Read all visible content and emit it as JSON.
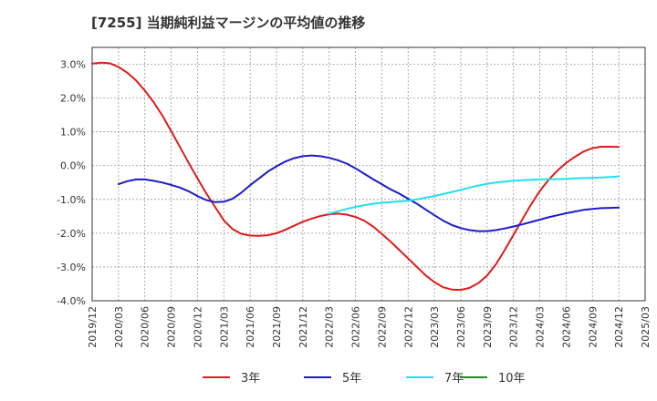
{
  "chart_data": {
    "type": "line",
    "title": "[7255]  当期純利益マージンの平均値の推移",
    "xlabel": "",
    "ylabel": "",
    "ylim": [
      -4.0,
      3.5
    ],
    "y_ticks": [
      3.0,
      2.0,
      1.0,
      0.0,
      -1.0,
      -2.0,
      -3.0,
      -4.0
    ],
    "y_tick_labels": [
      "3.0%",
      "2.0%",
      "1.0%",
      "0.0%",
      "-1.0%",
      "-2.0%",
      "-3.0%",
      "-4.0%"
    ],
    "x_tick_labels": [
      "2019/12",
      "2020/03",
      "2020/06",
      "2020/09",
      "2020/12",
      "2021/03",
      "2021/06",
      "2021/09",
      "2021/12",
      "2022/03",
      "2022/06",
      "2022/09",
      "2022/12",
      "2023/03",
      "2023/06",
      "2023/09",
      "2023/12",
      "2024/03",
      "2024/06",
      "2024/09",
      "2024/12",
      "2025/03"
    ],
    "grid": true,
    "legend_position": "bottom",
    "series": [
      {
        "name": "3年",
        "color": "#dd1c1c",
        "points": [
          {
            "x": "2019/12",
            "y": 3.02
          },
          {
            "x": "2020/01",
            "y": 3.05
          },
          {
            "x": "2020/02",
            "y": 3.03
          },
          {
            "x": "2020/03",
            "y": 2.92
          },
          {
            "x": "2020/04",
            "y": 2.75
          },
          {
            "x": "2020/05",
            "y": 2.52
          },
          {
            "x": "2020/06",
            "y": 2.22
          },
          {
            "x": "2020/07",
            "y": 1.88
          },
          {
            "x": "2020/08",
            "y": 1.48
          },
          {
            "x": "2020/09",
            "y": 1.02
          },
          {
            "x": "2020/10",
            "y": 0.55
          },
          {
            "x": "2020/11",
            "y": 0.08
          },
          {
            "x": "2020/12",
            "y": -0.38
          },
          {
            "x": "2021/01",
            "y": -0.82
          },
          {
            "x": "2021/02",
            "y": -1.22
          },
          {
            "x": "2021/03",
            "y": -1.62
          },
          {
            "x": "2021/04",
            "y": -1.88
          },
          {
            "x": "2021/05",
            "y": -2.02
          },
          {
            "x": "2021/06",
            "y": -2.07
          },
          {
            "x": "2021/07",
            "y": -2.08
          },
          {
            "x": "2021/08",
            "y": -2.06
          },
          {
            "x": "2021/09",
            "y": -2.0
          },
          {
            "x": "2021/10",
            "y": -1.9
          },
          {
            "x": "2021/11",
            "y": -1.78
          },
          {
            "x": "2021/12",
            "y": -1.66
          },
          {
            "x": "2022/01",
            "y": -1.57
          },
          {
            "x": "2022/02",
            "y": -1.49
          },
          {
            "x": "2022/03",
            "y": -1.44
          },
          {
            "x": "2022/04",
            "y": -1.42
          },
          {
            "x": "2022/05",
            "y": -1.45
          },
          {
            "x": "2022/06",
            "y": -1.52
          },
          {
            "x": "2022/07",
            "y": -1.63
          },
          {
            "x": "2022/08",
            "y": -1.8
          },
          {
            "x": "2022/09",
            "y": -2.02
          },
          {
            "x": "2022/10",
            "y": -2.25
          },
          {
            "x": "2022/11",
            "y": -2.5
          },
          {
            "x": "2022/12",
            "y": -2.75
          },
          {
            "x": "2023/01",
            "y": -3.0
          },
          {
            "x": "2023/02",
            "y": -3.25
          },
          {
            "x": "2023/03",
            "y": -3.45
          },
          {
            "x": "2023/04",
            "y": -3.6
          },
          {
            "x": "2023/05",
            "y": -3.67
          },
          {
            "x": "2023/06",
            "y": -3.68
          },
          {
            "x": "2023/07",
            "y": -3.62
          },
          {
            "x": "2023/08",
            "y": -3.48
          },
          {
            "x": "2023/09",
            "y": -3.25
          },
          {
            "x": "2023/10",
            "y": -2.92
          },
          {
            "x": "2023/11",
            "y": -2.5
          },
          {
            "x": "2023/12",
            "y": -2.05
          },
          {
            "x": "2024/01",
            "y": -1.6
          },
          {
            "x": "2024/02",
            "y": -1.15
          },
          {
            "x": "2024/03",
            "y": -0.75
          },
          {
            "x": "2024/04",
            "y": -0.42
          },
          {
            "x": "2024/05",
            "y": -0.15
          },
          {
            "x": "2024/06",
            "y": 0.08
          },
          {
            "x": "2024/07",
            "y": 0.26
          },
          {
            "x": "2024/08",
            "y": 0.42
          },
          {
            "x": "2024/09",
            "y": 0.52
          },
          {
            "x": "2024/10",
            "y": 0.56
          },
          {
            "x": "2024/11",
            "y": 0.56
          },
          {
            "x": "2024/12",
            "y": 0.55
          }
        ]
      },
      {
        "name": "5年",
        "color": "#1c1cc8",
        "points": [
          {
            "x": "2020/03",
            "y": -0.55
          },
          {
            "x": "2020/04",
            "y": -0.46
          },
          {
            "x": "2020/05",
            "y": -0.41
          },
          {
            "x": "2020/06",
            "y": -0.41
          },
          {
            "x": "2020/07",
            "y": -0.45
          },
          {
            "x": "2020/08",
            "y": -0.5
          },
          {
            "x": "2020/09",
            "y": -0.57
          },
          {
            "x": "2020/10",
            "y": -0.65
          },
          {
            "x": "2020/11",
            "y": -0.76
          },
          {
            "x": "2020/12",
            "y": -0.9
          },
          {
            "x": "2021/01",
            "y": -1.02
          },
          {
            "x": "2021/02",
            "y": -1.08
          },
          {
            "x": "2021/03",
            "y": -1.07
          },
          {
            "x": "2021/04",
            "y": -0.98
          },
          {
            "x": "2021/05",
            "y": -0.8
          },
          {
            "x": "2021/06",
            "y": -0.58
          },
          {
            "x": "2021/07",
            "y": -0.38
          },
          {
            "x": "2021/08",
            "y": -0.18
          },
          {
            "x": "2021/09",
            "y": -0.02
          },
          {
            "x": "2021/10",
            "y": 0.12
          },
          {
            "x": "2021/11",
            "y": 0.22
          },
          {
            "x": "2021/12",
            "y": 0.28
          },
          {
            "x": "2022/01",
            "y": 0.3
          },
          {
            "x": "2022/02",
            "y": 0.28
          },
          {
            "x": "2022/03",
            "y": 0.23
          },
          {
            "x": "2022/04",
            "y": 0.16
          },
          {
            "x": "2022/05",
            "y": 0.06
          },
          {
            "x": "2022/06",
            "y": -0.08
          },
          {
            "x": "2022/07",
            "y": -0.24
          },
          {
            "x": "2022/08",
            "y": -0.4
          },
          {
            "x": "2022/09",
            "y": -0.55
          },
          {
            "x": "2022/10",
            "y": -0.7
          },
          {
            "x": "2022/11",
            "y": -0.83
          },
          {
            "x": "2022/12",
            "y": -0.98
          },
          {
            "x": "2023/01",
            "y": -1.13
          },
          {
            "x": "2023/02",
            "y": -1.3
          },
          {
            "x": "2023/03",
            "y": -1.47
          },
          {
            "x": "2023/04",
            "y": -1.63
          },
          {
            "x": "2023/05",
            "y": -1.76
          },
          {
            "x": "2023/06",
            "y": -1.85
          },
          {
            "x": "2023/07",
            "y": -1.91
          },
          {
            "x": "2023/08",
            "y": -1.94
          },
          {
            "x": "2023/09",
            "y": -1.94
          },
          {
            "x": "2023/10",
            "y": -1.91
          },
          {
            "x": "2023/11",
            "y": -1.86
          },
          {
            "x": "2023/12",
            "y": -1.8
          },
          {
            "x": "2024/01",
            "y": -1.74
          },
          {
            "x": "2024/02",
            "y": -1.67
          },
          {
            "x": "2024/03",
            "y": -1.6
          },
          {
            "x": "2024/04",
            "y": -1.53
          },
          {
            "x": "2024/05",
            "y": -1.47
          },
          {
            "x": "2024/06",
            "y": -1.41
          },
          {
            "x": "2024/07",
            "y": -1.36
          },
          {
            "x": "2024/08",
            "y": -1.31
          },
          {
            "x": "2024/09",
            "y": -1.28
          },
          {
            "x": "2024/10",
            "y": -1.26
          },
          {
            "x": "2024/11",
            "y": -1.25
          },
          {
            "x": "2024/12",
            "y": -1.24
          }
        ]
      },
      {
        "name": "7年",
        "color": "#22e0ee",
        "points": [
          {
            "x": "2022/03",
            "y": -1.42
          },
          {
            "x": "2022/04",
            "y": -1.35
          },
          {
            "x": "2022/05",
            "y": -1.28
          },
          {
            "x": "2022/06",
            "y": -1.22
          },
          {
            "x": "2022/07",
            "y": -1.17
          },
          {
            "x": "2022/08",
            "y": -1.13
          },
          {
            "x": "2022/09",
            "y": -1.1
          },
          {
            "x": "2022/10",
            "y": -1.08
          },
          {
            "x": "2022/11",
            "y": -1.06
          },
          {
            "x": "2022/12",
            "y": -1.04
          },
          {
            "x": "2023/01",
            "y": -1.0
          },
          {
            "x": "2023/02",
            "y": -0.95
          },
          {
            "x": "2023/03",
            "y": -0.9
          },
          {
            "x": "2023/04",
            "y": -0.84
          },
          {
            "x": "2023/05",
            "y": -0.78
          },
          {
            "x": "2023/06",
            "y": -0.72
          },
          {
            "x": "2023/07",
            "y": -0.65
          },
          {
            "x": "2023/08",
            "y": -0.59
          },
          {
            "x": "2023/09",
            "y": -0.54
          },
          {
            "x": "2023/10",
            "y": -0.5
          },
          {
            "x": "2023/11",
            "y": -0.47
          },
          {
            "x": "2023/12",
            "y": -0.45
          },
          {
            "x": "2024/01",
            "y": -0.43
          },
          {
            "x": "2024/02",
            "y": -0.42
          },
          {
            "x": "2024/03",
            "y": -0.41
          },
          {
            "x": "2024/04",
            "y": -0.4
          },
          {
            "x": "2024/05",
            "y": -0.4
          },
          {
            "x": "2024/06",
            "y": -0.39
          },
          {
            "x": "2024/07",
            "y": -0.38
          },
          {
            "x": "2024/08",
            "y": -0.37
          },
          {
            "x": "2024/09",
            "y": -0.36
          },
          {
            "x": "2024/10",
            "y": -0.35
          },
          {
            "x": "2024/11",
            "y": -0.34
          },
          {
            "x": "2024/12",
            "y": -0.32
          }
        ]
      },
      {
        "name": "10年",
        "color": "#238a23",
        "points": []
      }
    ]
  }
}
